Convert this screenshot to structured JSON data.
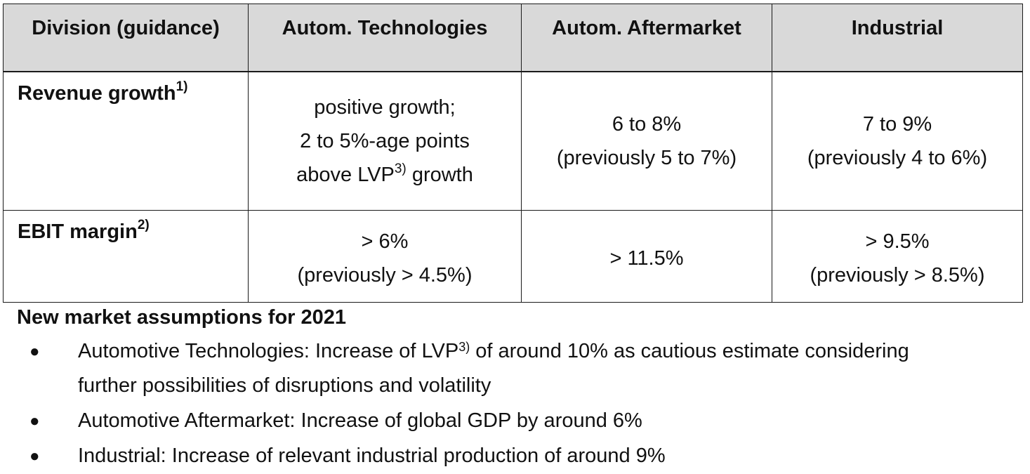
{
  "table": {
    "headers": [
      "Division (guidance)",
      "Autom. Technologies",
      "Autom. Aftermarket",
      "Industrial"
    ],
    "rows": [
      {
        "label": "Revenue growth",
        "label_note": "1)",
        "tech": {
          "line1": "positive growth;",
          "line2": "2 to 5%-age points",
          "line3_pre": "above LVP",
          "line3_note": "3)",
          "line3_post": " growth"
        },
        "aftermarket": {
          "line1": "6 to 8%",
          "line2": "(previously 5 to 7%)"
        },
        "industrial": {
          "line1": "7 to 9%",
          "line2": "(previously 4 to 6%)"
        }
      },
      {
        "label": "EBIT margin",
        "label_note": "2)",
        "tech": {
          "line1": "> 6%",
          "line2": "(previously > 4.5%)"
        },
        "aftermarket": {
          "line1": "> 11.5%"
        },
        "industrial": {
          "line1": "> 9.5%",
          "line2": "(previously > 8.5%)"
        }
      }
    ]
  },
  "assumptions": {
    "title": "New market assumptions for 2021",
    "bullet_symbol": "●",
    "items": [
      {
        "pre": "Automotive Technologies: Increase of LVP",
        "note": "3)",
        "post": " of around 10% as cautious estimate considering",
        "cont": "further possibilities of disruptions and volatility"
      },
      {
        "text": "Automotive Aftermarket: Increase of global GDP by around 6%"
      },
      {
        "text": "Industrial: Increase of relevant industrial production of around 9%"
      }
    ]
  }
}
